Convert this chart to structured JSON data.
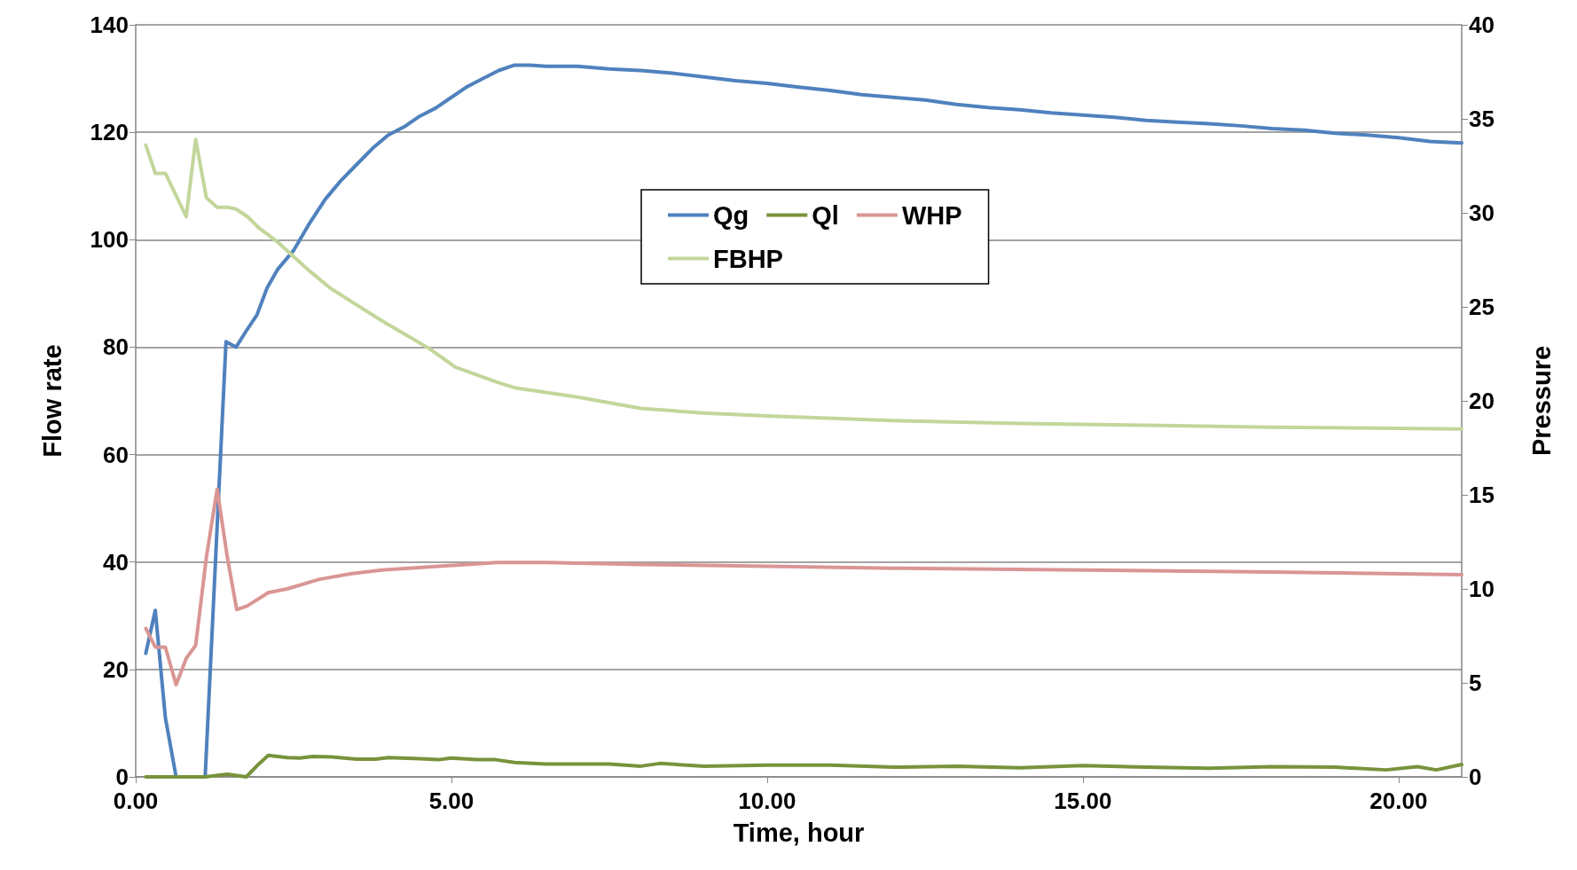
{
  "chart_data": {
    "type": "line",
    "xlabel": "Time, hour",
    "ylabel": "Flow rate",
    "y2label": "Pressure",
    "xlim": [
      0,
      21
    ],
    "xticks": [
      {
        "value": 0,
        "label": "0.00"
      },
      {
        "value": 5,
        "label": "5.00"
      },
      {
        "value": 10,
        "label": "10.00"
      },
      {
        "value": 15,
        "label": "15.00"
      },
      {
        "value": 20,
        "label": "20.00"
      }
    ],
    "ylim": [
      0,
      140
    ],
    "yticks": [
      0,
      20,
      40,
      60,
      80,
      100,
      120,
      140
    ],
    "y2lim": [
      0,
      40
    ],
    "y2ticks": [
      0,
      5,
      10,
      15,
      20,
      25,
      30,
      35,
      40
    ],
    "grid": "y",
    "legend": "top",
    "marker": "none",
    "line_style": "solid",
    "series": [
      {
        "name": "Qg",
        "color": "#4f81bd",
        "x": [
          0.16,
          0.31,
          0.47,
          0.64,
          0.8,
          0.95,
          1.1,
          1.43,
          1.59,
          1.75,
          1.92,
          2.08,
          2.25,
          2.5,
          2.75,
          3.0,
          3.25,
          3.5,
          3.75,
          4.0,
          4.25,
          4.5,
          4.75,
          5.0,
          5.25,
          5.5,
          5.75,
          6.0,
          6.25,
          6.5,
          7.0,
          7.5,
          8.0,
          8.5,
          9.0,
          9.5,
          10.0,
          10.5,
          11.0,
          11.5,
          12.0,
          12.5,
          13.0,
          13.5,
          14.0,
          14.5,
          15.0,
          15.5,
          16.0,
          16.5,
          17.0,
          17.5,
          18.0,
          18.5,
          19.0,
          19.5,
          20.0,
          20.5,
          21.0
        ],
        "values": [
          23,
          31,
          11,
          0,
          0,
          0,
          0,
          81,
          80,
          83,
          86,
          91,
          94.5,
          98,
          103,
          107.5,
          111,
          114,
          117,
          119.5,
          121,
          123,
          124.5,
          126.5,
          128.5,
          130,
          131.5,
          132.5,
          132.5,
          132.3,
          132.3,
          131.8,
          131.5,
          131,
          130.3,
          129.6,
          129.1,
          128.4,
          127.8,
          127,
          126.5,
          126,
          125.2,
          124.6,
          124.2,
          123.6,
          123.2,
          122.8,
          122.2,
          121.9,
          121.6,
          121.2,
          120.7,
          120.4,
          119.8,
          119.5,
          119,
          118.3,
          118
        ]
      },
      {
        "name": "Ql",
        "color": "#77933c",
        "x": [
          0.16,
          0.5,
          0.8,
          1.1,
          1.3,
          1.45,
          1.75,
          1.95,
          2.1,
          2.4,
          2.6,
          2.8,
          3.1,
          3.5,
          3.8,
          4.0,
          4.5,
          4.8,
          5.0,
          5.4,
          5.7,
          6.0,
          6.5,
          7.5,
          8.0,
          8.3,
          9.0,
          10.0,
          11.0,
          12.0,
          13.0,
          14.0,
          15.0,
          16.0,
          17.0,
          18.0,
          19.0,
          19.8,
          20.3,
          20.6,
          21.0
        ],
        "values": [
          0,
          0,
          0,
          0,
          0.3,
          0.5,
          0,
          2.4,
          4,
          3.6,
          3.5,
          3.8,
          3.7,
          3.3,
          3.3,
          3.6,
          3.4,
          3.2,
          3.5,
          3.2,
          3.2,
          2.7,
          2.4,
          2.4,
          2,
          2.5,
          2,
          2.2,
          2.2,
          1.8,
          2,
          1.7,
          2.1,
          1.8,
          1.6,
          1.9,
          1.8,
          1.3,
          1.9,
          1.3,
          2.3
        ]
      },
      {
        "name": "WHP",
        "color": "#d99694",
        "axis": "y2",
        "x": [
          0.16,
          0.31,
          0.47,
          0.64,
          0.8,
          0.95,
          1.12,
          1.29,
          1.45,
          1.6,
          1.77,
          2.1,
          2.4,
          2.9,
          3.4,
          3.9,
          4.8,
          5.72,
          6.5,
          8,
          10,
          12,
          15,
          18,
          21
        ],
        "values": [
          7.9,
          6.9,
          6.9,
          4.9,
          6.3,
          7.0,
          11.7,
          15.3,
          11.7,
          8.9,
          9.1,
          9.8,
          10.0,
          10.5,
          10.8,
          11.0,
          11.2,
          11.4,
          11.4,
          11.3,
          11.2,
          11.1,
          11.0,
          10.9,
          10.75
        ]
      },
      {
        "name": "FBHP",
        "color": "#c3d69b",
        "axis": "y2",
        "x": [
          0.16,
          0.31,
          0.47,
          0.8,
          0.95,
          1.12,
          1.29,
          1.45,
          1.59,
          1.77,
          1.95,
          2.23,
          2.72,
          3.08,
          3.5,
          3.93,
          4.64,
          5.06,
          5.72,
          6.0,
          7.0,
          8.0,
          9.0,
          10.0,
          12.0,
          14.0,
          16.0,
          18.0,
          21.0
        ],
        "values": [
          33.6,
          32.1,
          32.1,
          29.8,
          33.9,
          30.8,
          30.3,
          30.3,
          30.2,
          29.8,
          29.2,
          28.5,
          27.0,
          26.0,
          25.1,
          24.2,
          22.8,
          21.8,
          21.0,
          20.7,
          20.2,
          19.6,
          19.35,
          19.2,
          18.95,
          18.8,
          18.7,
          18.6,
          18.5
        ]
      }
    ]
  }
}
